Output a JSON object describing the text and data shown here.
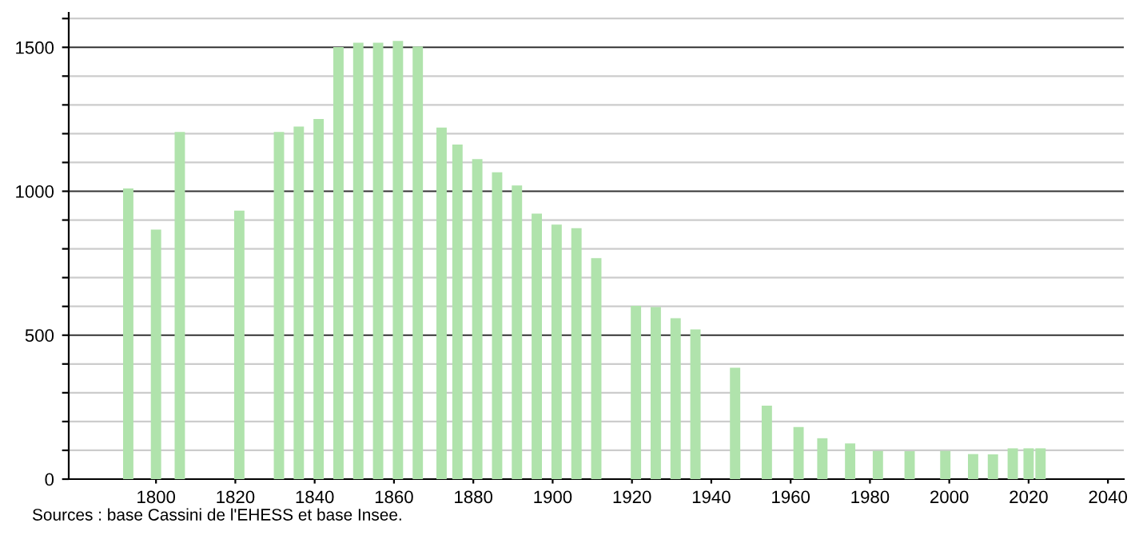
{
  "chart_data": {
    "type": "bar",
    "x": [
      1793,
      1800,
      1806,
      1821,
      1831,
      1836,
      1841,
      1846,
      1851,
      1856,
      1861,
      1866,
      1872,
      1876,
      1881,
      1886,
      1891,
      1896,
      1901,
      1906,
      1911,
      1921,
      1926,
      1931,
      1936,
      1946,
      1954,
      1962,
      1968,
      1975,
      1982,
      1990,
      1999,
      2006,
      2011,
      2016,
      2020,
      2023
    ],
    "values": [
      1010,
      867,
      1206,
      933,
      1206,
      1225,
      1251,
      1501,
      1516,
      1516,
      1522,
      1503,
      1221,
      1162,
      1112,
      1066,
      1020,
      922,
      884,
      872,
      768,
      602,
      598,
      559,
      520,
      387,
      255,
      181,
      142,
      124,
      98,
      97,
      98,
      87,
      86,
      107,
      107,
      107
    ],
    "color": "#b0e3ac",
    "xlim": [
      1778,
      2044
    ],
    "xticks": [
      1800,
      1820,
      1840,
      1860,
      1880,
      1900,
      1920,
      1940,
      1960,
      1980,
      2000,
      2020,
      2040
    ],
    "ylim": [
      0,
      1620
    ],
    "yticks": [
      0,
      {
        "value": 100,
        "label": null
      },
      {
        "value": 200,
        "label": null
      },
      {
        "value": 300,
        "label": null
      },
      {
        "value": 400,
        "label": null
      },
      500,
      {
        "value": 600,
        "label": null
      },
      {
        "value": 700,
        "label": null
      },
      {
        "value": 800,
        "label": null
      },
      {
        "value": 900,
        "label": null
      },
      1000,
      {
        "value": 1100,
        "label": null
      },
      {
        "value": 1200,
        "label": null
      },
      {
        "value": 1300,
        "label": null
      },
      {
        "value": 1400,
        "label": null
      },
      1500,
      {
        "value": 1600,
        "label": null
      }
    ],
    "grid": "y",
    "annotations": [
      "Sources : base Cassini de l'EHESS et base Insee."
    ]
  }
}
